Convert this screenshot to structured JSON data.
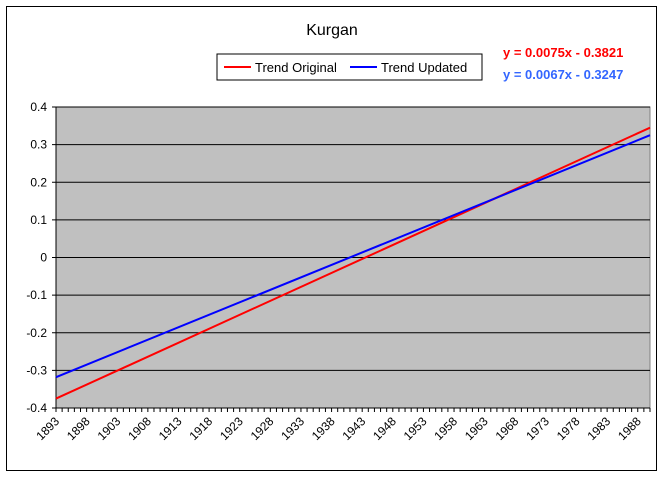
{
  "chart_data": {
    "type": "line",
    "title": "Kurgan",
    "xlabel": "",
    "ylabel": "",
    "x": [
      1893,
      1898,
      1903,
      1908,
      1913,
      1918,
      1923,
      1928,
      1933,
      1938,
      1943,
      1948,
      1953,
      1958,
      1963,
      1968,
      1973,
      1978,
      1983,
      1988
    ],
    "x_range": [
      1893,
      1990
    ],
    "ylim": [
      -0.4,
      0.4
    ],
    "yticks": [
      -0.4,
      -0.3,
      -0.2,
      -0.1,
      0,
      0.1,
      0.2,
      0.3,
      0.4
    ],
    "grid": "horizontal",
    "plot_background": "#C0C0C0",
    "legend_position": "top-right",
    "series": [
      {
        "name": "Trend Original",
        "color": "#FF0000",
        "equation": "y = 0.0075x - 0.3821",
        "slope": 0.0075,
        "intercept": -0.3821,
        "endpoints": [
          [
            1893,
            -0.375
          ],
          [
            1990,
            0.345
          ]
        ]
      },
      {
        "name": "Trend Updated",
        "color": "#0000FF",
        "equation": "y = 0.0067x - 0.3247",
        "slope": 0.0067,
        "intercept": -0.3247,
        "endpoints": [
          [
            1893,
            -0.318
          ],
          [
            1990,
            0.325
          ]
        ]
      }
    ],
    "annotations": [
      {
        "text": "y = 0.0075x - 0.3821",
        "color": "#FF0000"
      },
      {
        "text": "y = 0.0067x - 0.3247",
        "color": "#3366FF"
      }
    ]
  }
}
